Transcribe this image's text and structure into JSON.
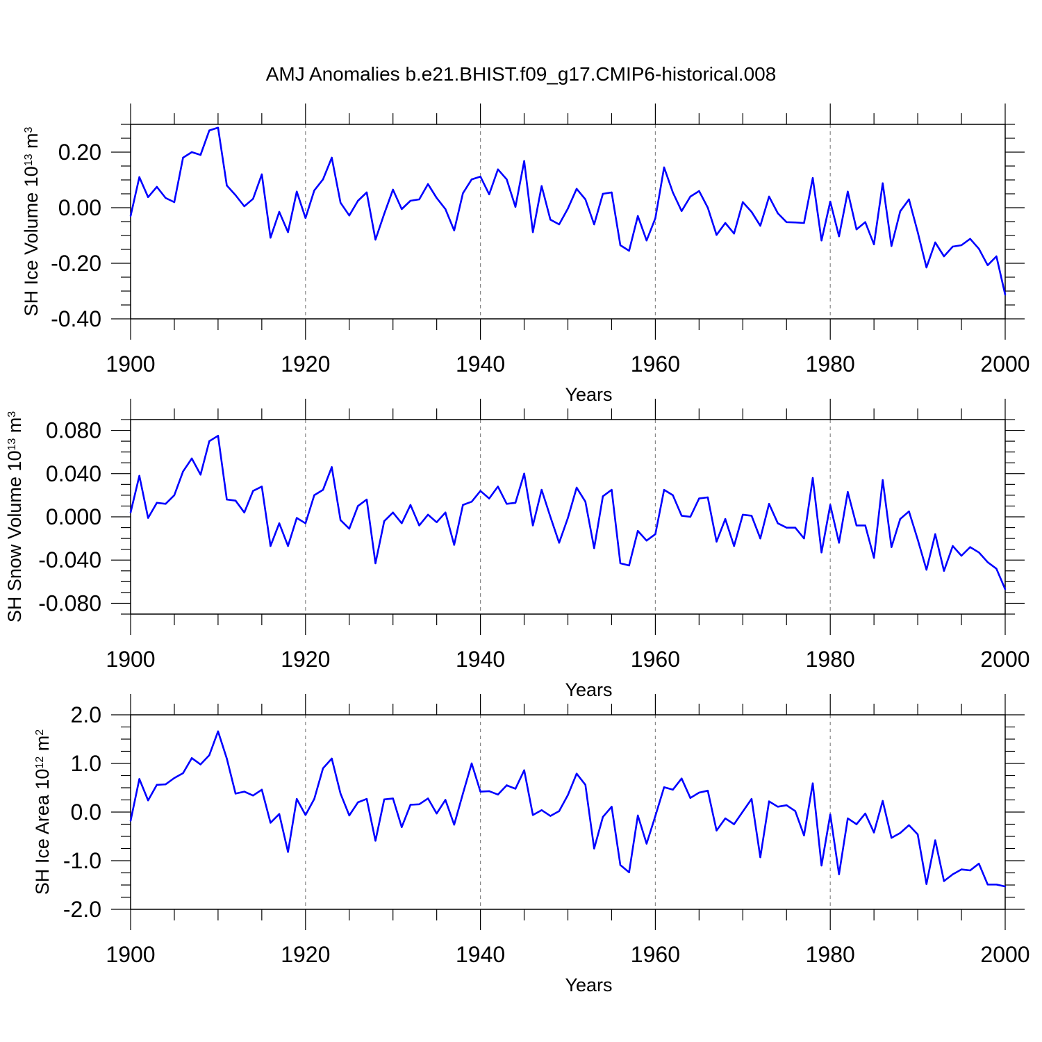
{
  "figure": {
    "title": "AMJ Anomalies b.e21.BHIST.f09_g17.CMIP6-historical.008",
    "line_color": "#0000ff",
    "grid_color": "#888888"
  },
  "chart_data": [
    {
      "type": "line",
      "name": "sh-ice-volume",
      "ylabel_main": "SH Ice Volume 10",
      "ylabel_exp": "13",
      "ylabel_unit": " m",
      "ylabel_unit_exp": "3",
      "xlabel": "Years",
      "xlim": [
        1900,
        2000
      ],
      "ylim": [
        -0.4,
        0.3
      ],
      "xticks": [
        1900,
        1920,
        1940,
        1960,
        1980,
        2000
      ],
      "xtick_labels": [
        "1900",
        "1920",
        "1940",
        "1960",
        "1980",
        "2000"
      ],
      "yticks": [
        -0.4,
        -0.2,
        0.0,
        0.2
      ],
      "ytick_labels": [
        "-0.40",
        "-0.20",
        "0.00",
        "0.20"
      ],
      "x_start": 1900,
      "values": [
        -0.03,
        0.11,
        0.038,
        0.075,
        0.035,
        0.02,
        0.18,
        0.2,
        0.19,
        0.278,
        0.288,
        0.08,
        0.045,
        0.005,
        0.032,
        0.12,
        -0.108,
        -0.015,
        -0.088,
        0.058,
        -0.037,
        0.062,
        0.102,
        0.18,
        0.018,
        -0.028,
        0.025,
        0.055,
        -0.115,
        -0.022,
        0.065,
        -0.005,
        0.025,
        0.03,
        0.085,
        0.035,
        -0.005,
        -0.082,
        0.052,
        0.102,
        0.112,
        0.048,
        0.138,
        0.102,
        0.003,
        0.168,
        -0.088,
        0.078,
        -0.043,
        -0.06,
        -0.003,
        0.068,
        0.03,
        -0.06,
        0.05,
        0.055,
        -0.135,
        -0.155,
        -0.03,
        -0.118,
        -0.038,
        0.145,
        0.055,
        -0.012,
        0.04,
        0.06,
        0.0,
        -0.098,
        -0.055,
        -0.093,
        0.02,
        -0.015,
        -0.065,
        0.04,
        -0.02,
        -0.052,
        -0.053,
        -0.055,
        0.107,
        -0.118,
        0.022,
        -0.103,
        0.058,
        -0.078,
        -0.052,
        -0.132,
        0.088,
        -0.138,
        -0.013,
        0.03,
        -0.088,
        -0.215,
        -0.125,
        -0.175,
        -0.14,
        -0.135,
        -0.112,
        -0.148,
        -0.207,
        -0.175,
        -0.313
      ]
    },
    {
      "type": "line",
      "name": "sh-snow-volume",
      "ylabel_main": "SH Snow Volume 10",
      "ylabel_exp": "13",
      "ylabel_unit": " m",
      "ylabel_unit_exp": "3",
      "xlabel": "Years",
      "xlim": [
        1900,
        2000
      ],
      "ylim": [
        -0.09,
        0.09
      ],
      "xticks": [
        1900,
        1920,
        1940,
        1960,
        1980,
        2000
      ],
      "xtick_labels": [
        "1900",
        "1920",
        "1940",
        "1960",
        "1980",
        "2000"
      ],
      "yticks": [
        -0.08,
        -0.04,
        0.0,
        0.04,
        0.08
      ],
      "ytick_labels": [
        "-0.080",
        "-0.040",
        "0.000",
        "0.040",
        "0.080"
      ],
      "x_start": 1900,
      "values": [
        0.004,
        0.038,
        -0.001,
        0.013,
        0.012,
        0.02,
        0.042,
        0.054,
        0.039,
        0.07,
        0.075,
        0.016,
        0.015,
        0.004,
        0.024,
        0.028,
        -0.027,
        -0.006,
        -0.027,
        -0.001,
        -0.006,
        0.02,
        0.025,
        0.046,
        -0.003,
        -0.011,
        0.01,
        0.016,
        -0.043,
        -0.004,
        0.004,
        -0.006,
        0.011,
        -0.008,
        0.002,
        -0.005,
        0.004,
        -0.026,
        0.011,
        0.014,
        0.024,
        0.017,
        0.028,
        0.012,
        0.013,
        0.04,
        -0.008,
        0.025,
        0.0,
        -0.024,
        -0.001,
        0.027,
        0.014,
        -0.029,
        0.019,
        0.025,
        -0.043,
        -0.045,
        -0.013,
        -0.022,
        -0.016,
        0.025,
        0.02,
        0.001,
        0.0,
        0.017,
        0.018,
        -0.023,
        -0.002,
        -0.027,
        0.002,
        0.001,
        -0.02,
        0.012,
        -0.006,
        -0.01,
        -0.01,
        -0.02,
        0.036,
        -0.033,
        0.011,
        -0.024,
        0.023,
        -0.008,
        -0.008,
        -0.038,
        0.034,
        -0.028,
        -0.002,
        0.005,
        -0.021,
        -0.049,
        -0.016,
        -0.05,
        -0.027,
        -0.036,
        -0.028,
        -0.033,
        -0.042,
        -0.048,
        -0.067
      ]
    },
    {
      "type": "line",
      "name": "sh-ice-area",
      "ylabel_main": "SH Ice Area 10",
      "ylabel_exp": "12",
      "ylabel_unit": " m",
      "ylabel_unit_exp": "2",
      "xlabel": "Years",
      "xlim": [
        1900,
        2000
      ],
      "ylim": [
        -2.0,
        2.0
      ],
      "xticks": [
        1900,
        1920,
        1940,
        1960,
        1980,
        2000
      ],
      "xtick_labels": [
        "1900",
        "1920",
        "1940",
        "1960",
        "1980",
        "2000"
      ],
      "yticks": [
        -2.0,
        -1.0,
        0.0,
        1.0,
        2.0
      ],
      "ytick_labels": [
        "-2.0",
        "-1.0",
        "0.0",
        "1.0",
        "2.0"
      ],
      "x_start": 1900,
      "values": [
        -0.18,
        0.68,
        0.24,
        0.56,
        0.57,
        0.7,
        0.8,
        1.11,
        0.98,
        1.17,
        1.66,
        1.1,
        0.38,
        0.42,
        0.34,
        0.46,
        -0.22,
        -0.04,
        -0.82,
        0.27,
        -0.06,
        0.27,
        0.9,
        1.1,
        0.38,
        -0.07,
        0.2,
        0.27,
        -0.59,
        0.26,
        0.28,
        -0.31,
        0.15,
        0.16,
        0.28,
        -0.03,
        0.25,
        -0.26,
        0.38,
        1.0,
        0.42,
        0.43,
        0.36,
        0.55,
        0.48,
        0.86,
        -0.06,
        0.04,
        -0.08,
        0.02,
        0.35,
        0.79,
        0.56,
        -0.75,
        -0.1,
        0.11,
        -1.09,
        -1.24,
        -0.07,
        -0.65,
        -0.08,
        0.51,
        0.46,
        0.69,
        0.29,
        0.4,
        0.44,
        -0.38,
        -0.13,
        -0.25,
        0.01,
        0.27,
        -0.93,
        0.22,
        0.11,
        0.14,
        0.02,
        -0.48,
        0.59,
        -1.1,
        -0.05,
        -1.28,
        -0.13,
        -0.25,
        -0.03,
        -0.42,
        0.23,
        -0.53,
        -0.43,
        -0.27,
        -0.46,
        -1.48,
        -0.58,
        -1.42,
        -1.28,
        -1.18,
        -1.2,
        -1.06,
        -1.49,
        -1.49,
        -1.53
      ]
    }
  ]
}
